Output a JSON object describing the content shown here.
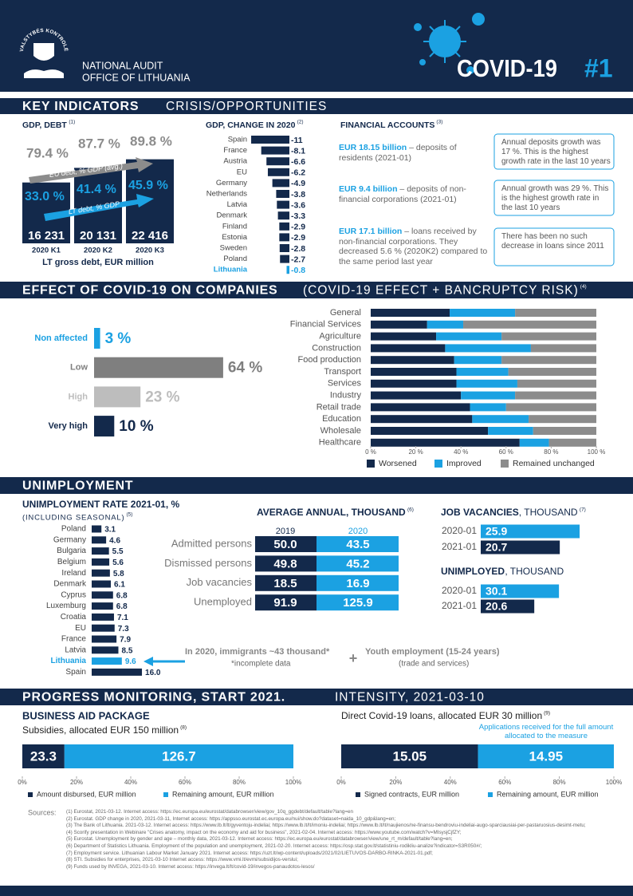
{
  "header": {
    "logo_text": "VALSTYBĖS KONTROLĖ",
    "org": [
      "NATIONAL AUDIT",
      "OFFICE OF LITHUANIA"
    ],
    "title": "COVID-19",
    "issue": "#1"
  },
  "key_indicators": {
    "heading": "KEY INDICATORS",
    "subheading": "CRISIS/OPPORTUNITIES",
    "gdp_debt": {
      "type": "bar",
      "title": "GDP, DEBT",
      "ref": "(1)",
      "categories": [
        "2020 K1",
        "2020 K2",
        "2020 K3"
      ],
      "values": [
        16231,
        20131,
        22416
      ],
      "value_labels": [
        "16 231",
        "20 131",
        "22 416"
      ],
      "color": "#13294b",
      "value_title": "LT gross debt, EUR million",
      "eu_debt": {
        "name": "EU debt, % GDP (avg.)",
        "color": "#8c8c8c",
        "values": [
          79.4,
          87.7,
          89.8
        ],
        "value_labels": [
          "79.4 %",
          "87.7 %",
          "89.8 %"
        ]
      },
      "lt_debt": {
        "name": "LT debt, % GDP",
        "color": "#1ba1e2",
        "values": [
          33.0,
          41.4,
          45.9
        ],
        "value_labels": [
          "33.0 %",
          "41.4 %",
          "45.9 %"
        ]
      }
    },
    "gdp_change": {
      "type": "bar",
      "title": "GDP, CHANGE IN 2020",
      "ref": "(2)",
      "categories": [
        "Spain",
        "France",
        "Austria",
        "EU",
        "Germany",
        "Netherlands",
        "Latvia",
        "Denmark",
        "Finland",
        "Estonia",
        "Sweden",
        "Poland",
        "Lithuania"
      ],
      "values": [
        -11,
        -8.1,
        -6.6,
        -6.2,
        -4.9,
        -3.8,
        -3.6,
        -3.3,
        -2.9,
        -2.9,
        -2.8,
        -2.7,
        -0.8
      ],
      "color": "#13294b",
      "highlight": 12,
      "highlight_color": "#1ba1e2"
    },
    "financial_accounts": {
      "title": "FINANCIAL ACCOUNTS",
      "ref": "(3)",
      "items": [
        {
          "amount": "EUR 18.15 billion",
          "text": " – deposits of residents (2021-01)",
          "note": "Annual deposits growth was 17 %. This is the highest growth rate in the last 10 years"
        },
        {
          "amount": "EUR 9.4 billion",
          "text": " – deposits of non-financial corporations (2021-01)",
          "note": "Annual growth was 29 %. This is the highest growth rate in the last 10 years"
        },
        {
          "amount": "EUR 17.1 billion",
          "text": " – loans received by non-financial corporations. They decreased 5.6 % (2020K2) compared to the same period last year",
          "note": "There has been no such decrease in loans since 2011"
        }
      ]
    }
  },
  "companies": {
    "heading": "EFFECT OF COVID-19 ON COMPANIES",
    "subheading": "(COVID-19 EFFECT + BANCRUPTCY RISK)",
    "ref": "(4)",
    "risk": {
      "type": "bar",
      "categories": [
        "Non affected",
        "Low",
        "High",
        "Very high"
      ],
      "values": [
        3,
        64,
        23,
        10
      ],
      "value_labels": [
        "3 %",
        "64 %",
        "23 %",
        "10 %"
      ],
      "colors": [
        "#1ba1e2",
        "#7f7f7f",
        "#bdbdbd",
        "#13294b"
      ]
    },
    "sectors": {
      "type": "stacked_bar",
      "categories": [
        "General",
        "Financial Services",
        "Agriculture",
        "Construction",
        "Food production",
        "Transport",
        "Services",
        "Industry",
        "Retail trade",
        "Education",
        "Wholesale",
        "Healthcare"
      ],
      "series": [
        {
          "name": "Worsened",
          "color": "#13294b",
          "values": [
            35,
            25,
            29,
            33,
            37,
            38,
            38,
            40,
            44,
            45,
            52,
            66
          ]
        },
        {
          "name": "Improved",
          "color": "#1ba1e2",
          "values": [
            29,
            16,
            29,
            38,
            21,
            23,
            27,
            24,
            16,
            25,
            20,
            13
          ]
        },
        {
          "name": "Remained unchanged",
          "color": "#8c8c8c",
          "values": [
            36,
            59,
            42,
            29,
            42,
            39,
            35,
            36,
            40,
            30,
            28,
            21
          ]
        }
      ],
      "xlim": [
        0,
        100
      ],
      "xticks": [
        {
          "value": 0,
          "label": "0 %"
        },
        {
          "value": 20,
          "label": "20 %"
        },
        {
          "value": 40,
          "label": "40 %"
        },
        {
          "value": 60,
          "label": "60 %"
        },
        {
          "value": 80,
          "label": "80 %"
        },
        {
          "value": 100,
          "label": "100 %"
        }
      ]
    }
  },
  "unemployment": {
    "heading": "UNIMPLOYMENT",
    "rate": {
      "type": "bar",
      "title": "UNIMPLOYMENT RATE 2021-01, %",
      "subtitle": "(INCLUDING SEASONAL)",
      "ref": "(5)",
      "categories": [
        "Poland",
        "Germany",
        "Bulgaria",
        "Belgium",
        "Ireland",
        "Denmark",
        "Cyprus",
        "Luxemburg",
        "Croatia",
        "EU",
        "France",
        "Latvia",
        "Lithuania",
        "Spain"
      ],
      "values": [
        3.1,
        4.6,
        5.5,
        5.6,
        5.8,
        6.1,
        6.8,
        6.8,
        7.1,
        7.3,
        7.9,
        8.5,
        9.6,
        16.0
      ],
      "value_labels": [
        "3.1",
        "4.6",
        "5.5",
        "5.6",
        "5.8",
        "6.1",
        "6.8",
        "6.8",
        "7.1",
        "7.3",
        "7.9",
        "8.5",
        "9.6",
        "16.0"
      ],
      "color": "#13294b",
      "highlight": 12,
      "highlight_color": "#1ba1e2"
    },
    "average_annual": {
      "title": "AVERAGE ANNUAL, THOUSAND",
      "ref": "(6)",
      "columns": [
        "2019",
        "2020"
      ],
      "rows": [
        [
          "Admitted persons",
          "50.0",
          "43.5"
        ],
        [
          "Dismissed persons",
          "49.8",
          "45.2"
        ],
        [
          "Job vacancies",
          "18.5",
          "16.9"
        ],
        [
          "Unemployed",
          "91.9",
          "125.9"
        ]
      ]
    },
    "job_vacancies": {
      "type": "bar",
      "title": "JOB VACANCIES",
      "unit": ", THOUSAND",
      "ref": "(7)",
      "categories": [
        "2020-01",
        "2021-01"
      ],
      "values": [
        25.9,
        20.7
      ],
      "colors": [
        "#1ba1e2",
        "#13294b"
      ]
    },
    "unemployed": {
      "type": "bar",
      "title": "UNIMPLOYED",
      "unit": ", THOUSAND",
      "categories": [
        "2020-01",
        "2021-01"
      ],
      "values": [
        30.1,
        20.6
      ],
      "colors": [
        "#1ba1e2",
        "#13294b"
      ]
    },
    "notes": {
      "immigrants": "In 2020, immigrants ~43 thousand*",
      "footnote": "*incomplete data",
      "plus": "+",
      "youth": "Youth employment (15-24 years)",
      "youth_sub": "(trade and services)"
    }
  },
  "progress": {
    "heading": "PROGRESS MONITORING, START 2021.",
    "subheading": "INTENSITY, 2021-03-10",
    "business_aid": {
      "type": "stacked_bar",
      "title": "BUSINESS AID PACKAGE",
      "subtitle": "Subsidies, allocated EUR 150 million",
      "ref": "(8)",
      "series": [
        {
          "name": "Amount disbursed, EUR million",
          "color": "#13294b",
          "values": [
            23.3
          ]
        },
        {
          "name": "Remaining amount, EUR million",
          "color": "#1ba1e2",
          "values": [
            126.7
          ]
        }
      ],
      "xlim": [
        0,
        100
      ],
      "xticks": [
        {
          "value": 0,
          "label": "0%"
        },
        {
          "value": 20,
          "label": "20%"
        },
        {
          "value": 40,
          "label": "40%"
        },
        {
          "value": 60,
          "label": "60%"
        },
        {
          "value": 80,
          "label": "80%"
        },
        {
          "value": 100,
          "label": "100%"
        }
      ]
    },
    "loans": {
      "type": "stacked_bar",
      "subtitle": "Direct Covid-19 loans, allocated EUR 30 million",
      "ref": "(9)",
      "note": "Applications received for the full amount allocated to the measure",
      "series": [
        {
          "name": "Signed contracts, EUR million",
          "color": "#13294b",
          "values": [
            15.05
          ]
        },
        {
          "name": "Remaining amount, EUR million",
          "color": "#1ba1e2",
          "values": [
            14.95
          ]
        }
      ],
      "xlim": [
        0,
        100
      ],
      "xticks": [
        {
          "value": 0,
          "label": "0%"
        },
        {
          "value": 20,
          "label": "20%"
        },
        {
          "value": 40,
          "label": "40%"
        },
        {
          "value": 60,
          "label": "60%"
        },
        {
          "value": 80,
          "label": "80%"
        },
        {
          "value": 100,
          "label": "100%"
        }
      ]
    }
  },
  "sources": {
    "label": "Sources:",
    "items": [
      "(1) Eurostat, 2021-03-12. Internet access: https://ec.europa.eu/eurostat/databrowser/view/gov_10q_ggdebt/default/table?lang=en",
      "(2) Eurostat. GDP change in 2020, 2021-03-11, Internet access: https://appsso.eurostat.ec.europa.eu/nui/show.do?dataset=naida_10_gdp&lang=en;",
      "(3) The Bank of Lithuania. 2021-03-12. Internet access: https://www.lb.lt/lt/gyventoju-indeliai; https://www.lb.lt/lt/imoniu-indeliai; https://www.lb.lt/lt/naujienos/ne-finansu-bendroviu-indeliai-augo-sparciausiai-per-pastaruosius-desimt-metu;",
      "(4) Scorify presentation in Webinare \"Crises anatomy, impact on the economy and aid for business\", 2021-02-04. Internet access: https://www.youtube.com/watch?v=MIsysjCjfZY;",
      "(5) Eurostat. Unemployment by gender and age – monthly data, 2021-03-12. Internet access: https://ec.europa.eu/eurostat/databrowser/view/une_rt_m/default/table?lang=en;",
      "(6) Department of Statistics Lithuania. Employment of the population and unemployment, 2021-02-20. Internet access: https://osp.stat.gov.lt/statistiniu-rodikliu-analize?indicator=S3R050#/;",
      "(7) Employment service. Lithuanian Labour Market January 2021. Internet access: https://uzt.lt/wp-content/uploads/2021/02/LIETUVOS-DARBO-RINKA-2021-01.pdf;",
      "(8) STI. Subsidies for enterprises, 2021-03-10 Internet access: https://www.vmi.lt/evmi/subsidijos-verslui;",
      "(9) Funds used by INVEGA, 2021-03-10. Internet access: https://invega.lt/lt/covid-19/invegos-panaudotos-lesos/"
    ]
  }
}
